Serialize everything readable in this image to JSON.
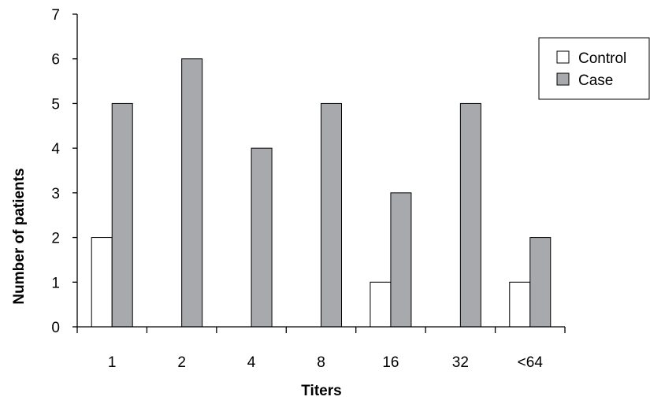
{
  "chart_data": {
    "type": "bar",
    "title": "",
    "xlabel": "Titers",
    "ylabel": "Number of patients",
    "categories": [
      "1",
      "2",
      "4",
      "8",
      "16",
      "32",
      "<64"
    ],
    "series": [
      {
        "name": "Control",
        "values": [
          2,
          0,
          0,
          0,
          1,
          0,
          1
        ],
        "color": "#ffffff"
      },
      {
        "name": "Case",
        "values": [
          5,
          6,
          4,
          5,
          3,
          5,
          2
        ],
        "color": "#a7a9ac"
      }
    ],
    "ylim": [
      0,
      7
    ],
    "yticks": [
      "0",
      "1",
      "2",
      "3",
      "4",
      "5",
      "6",
      "7"
    ],
    "grid": false,
    "legend_position": "top-right"
  }
}
